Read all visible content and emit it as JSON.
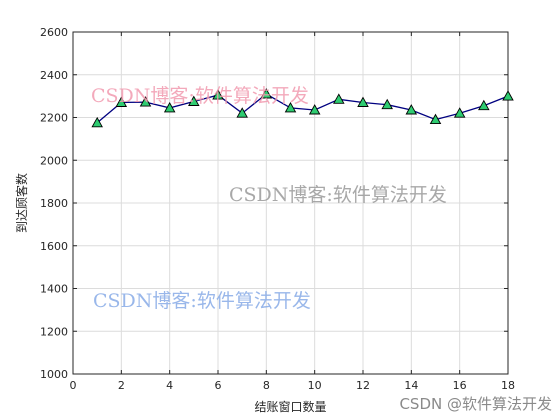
{
  "chart_data": {
    "type": "line",
    "title": "",
    "xlabel": "结账窗口数量",
    "ylabel": "到达顾客数",
    "xlim": [
      0,
      18
    ],
    "ylim": [
      1000,
      2600
    ],
    "xticks": [
      0,
      2,
      4,
      6,
      8,
      10,
      12,
      14,
      16,
      18
    ],
    "yticks": [
      1000,
      1200,
      1400,
      1600,
      1800,
      2000,
      2200,
      2400,
      2600
    ],
    "grid": true,
    "x": [
      1,
      2,
      3,
      4,
      5,
      6,
      7,
      8,
      9,
      10,
      11,
      12,
      13,
      14,
      15,
      16,
      17,
      18
    ],
    "series": [
      {
        "values": [
          2175,
          2270,
          2272,
          2245,
          2275,
          2305,
          2220,
          2310,
          2245,
          2235,
          2285,
          2270,
          2260,
          2235,
          2190,
          2220,
          2255,
          2300
        ],
        "line_color": "#000080",
        "marker": "triangle",
        "marker_fill": "#2ecc71",
        "marker_edge": "#000000"
      }
    ]
  },
  "watermarks": {
    "pink": {
      "text": "CSDN博客:软件算法开发",
      "color": "#f29bb0"
    },
    "gray": {
      "text": "CSDN博客:软件算法开发",
      "color": "#9a9a9a"
    },
    "blue": {
      "text": "CSDN博客:软件算法开发",
      "color": "#8fb0e8"
    },
    "footer": "CSDN @软件算法开发"
  }
}
